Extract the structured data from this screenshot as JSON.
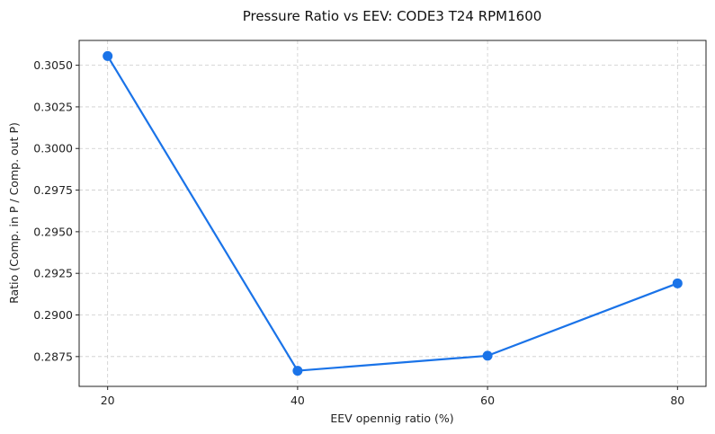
{
  "chart_data": {
    "type": "line",
    "title": "Pressure Ratio vs EEV: CODE3 T24 RPM1600",
    "xlabel": "EEV opennig ratio (%)",
    "ylabel": "Ratio (Comp. in P / Comp. out P)",
    "x": [
      20,
      40,
      60,
      80
    ],
    "series": [
      {
        "name": "Pressure Ratio",
        "values": [
          0.30555,
          0.28665,
          0.28755,
          0.2919
        ]
      }
    ],
    "xticks": [
      20,
      40,
      60,
      80
    ],
    "yticks": [
      0.2875,
      0.29,
      0.2925,
      0.295,
      0.2975,
      0.3,
      0.3025,
      0.305
    ],
    "ytick_labels": [
      "0.2875",
      "0.2900",
      "0.2925",
      "0.2950",
      "0.2975",
      "0.3000",
      "0.3025",
      "0.3050"
    ],
    "xlim": [
      17,
      83
    ],
    "ylim": [
      0.28571,
      0.30649
    ],
    "grid": true,
    "line_color": "#1a73e8"
  }
}
